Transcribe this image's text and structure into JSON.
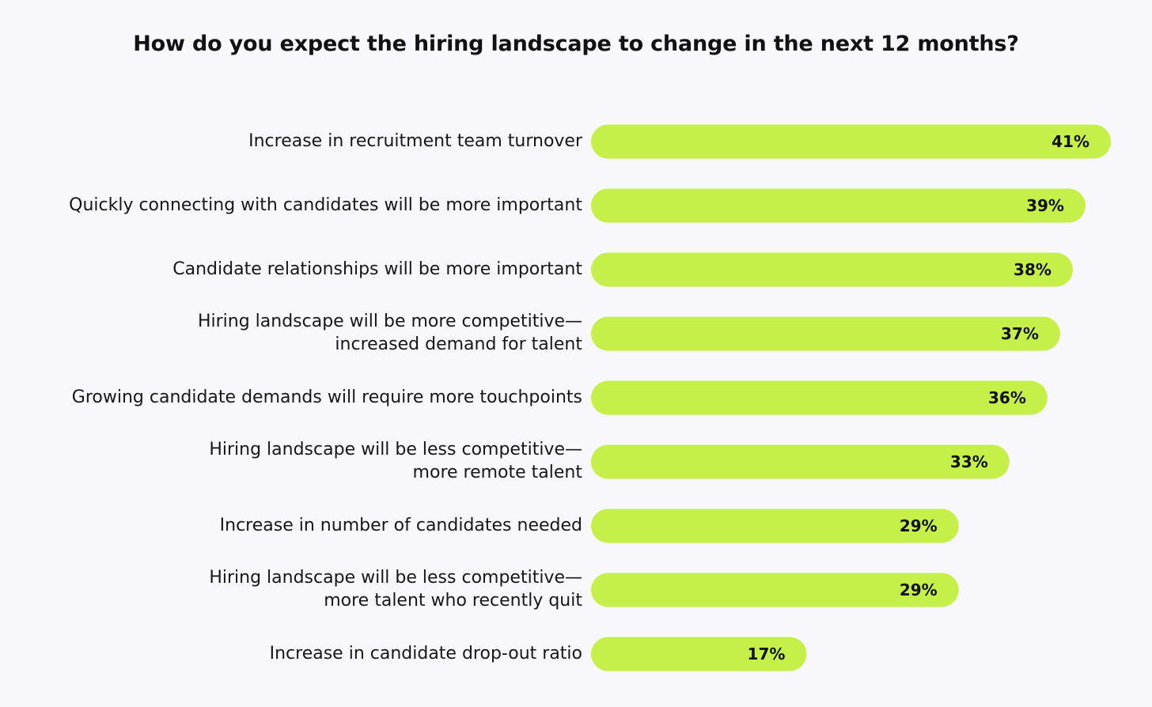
{
  "chart_data": {
    "type": "bar",
    "orientation": "horizontal",
    "title": "How do you expect the hiring landscape to change in the next 12 months?",
    "categories": [
      "Increase in recruitment team turnover",
      "Quickly connecting with candidates will be more important",
      "Candidate relationships will be more important",
      "Hiring landscape will be more competitive—\nincreased demand for talent",
      "Growing candidate demands will require more touchpoints",
      "Hiring landscape will be less competitive—\nmore remote talent",
      "Increase in number of candidates needed",
      "Hiring landscape will be less competitive—\nmore talent who recently quit",
      "Increase in candidate drop-out ratio"
    ],
    "values": [
      41,
      39,
      38,
      37,
      36,
      33,
      29,
      29,
      17
    ],
    "value_labels": [
      "41%",
      "39%",
      "38%",
      "37%",
      "36%",
      "33%",
      "29%",
      "29%",
      "17%"
    ],
    "unit": "%",
    "grid": false,
    "bar_color": "#c5f04a"
  }
}
